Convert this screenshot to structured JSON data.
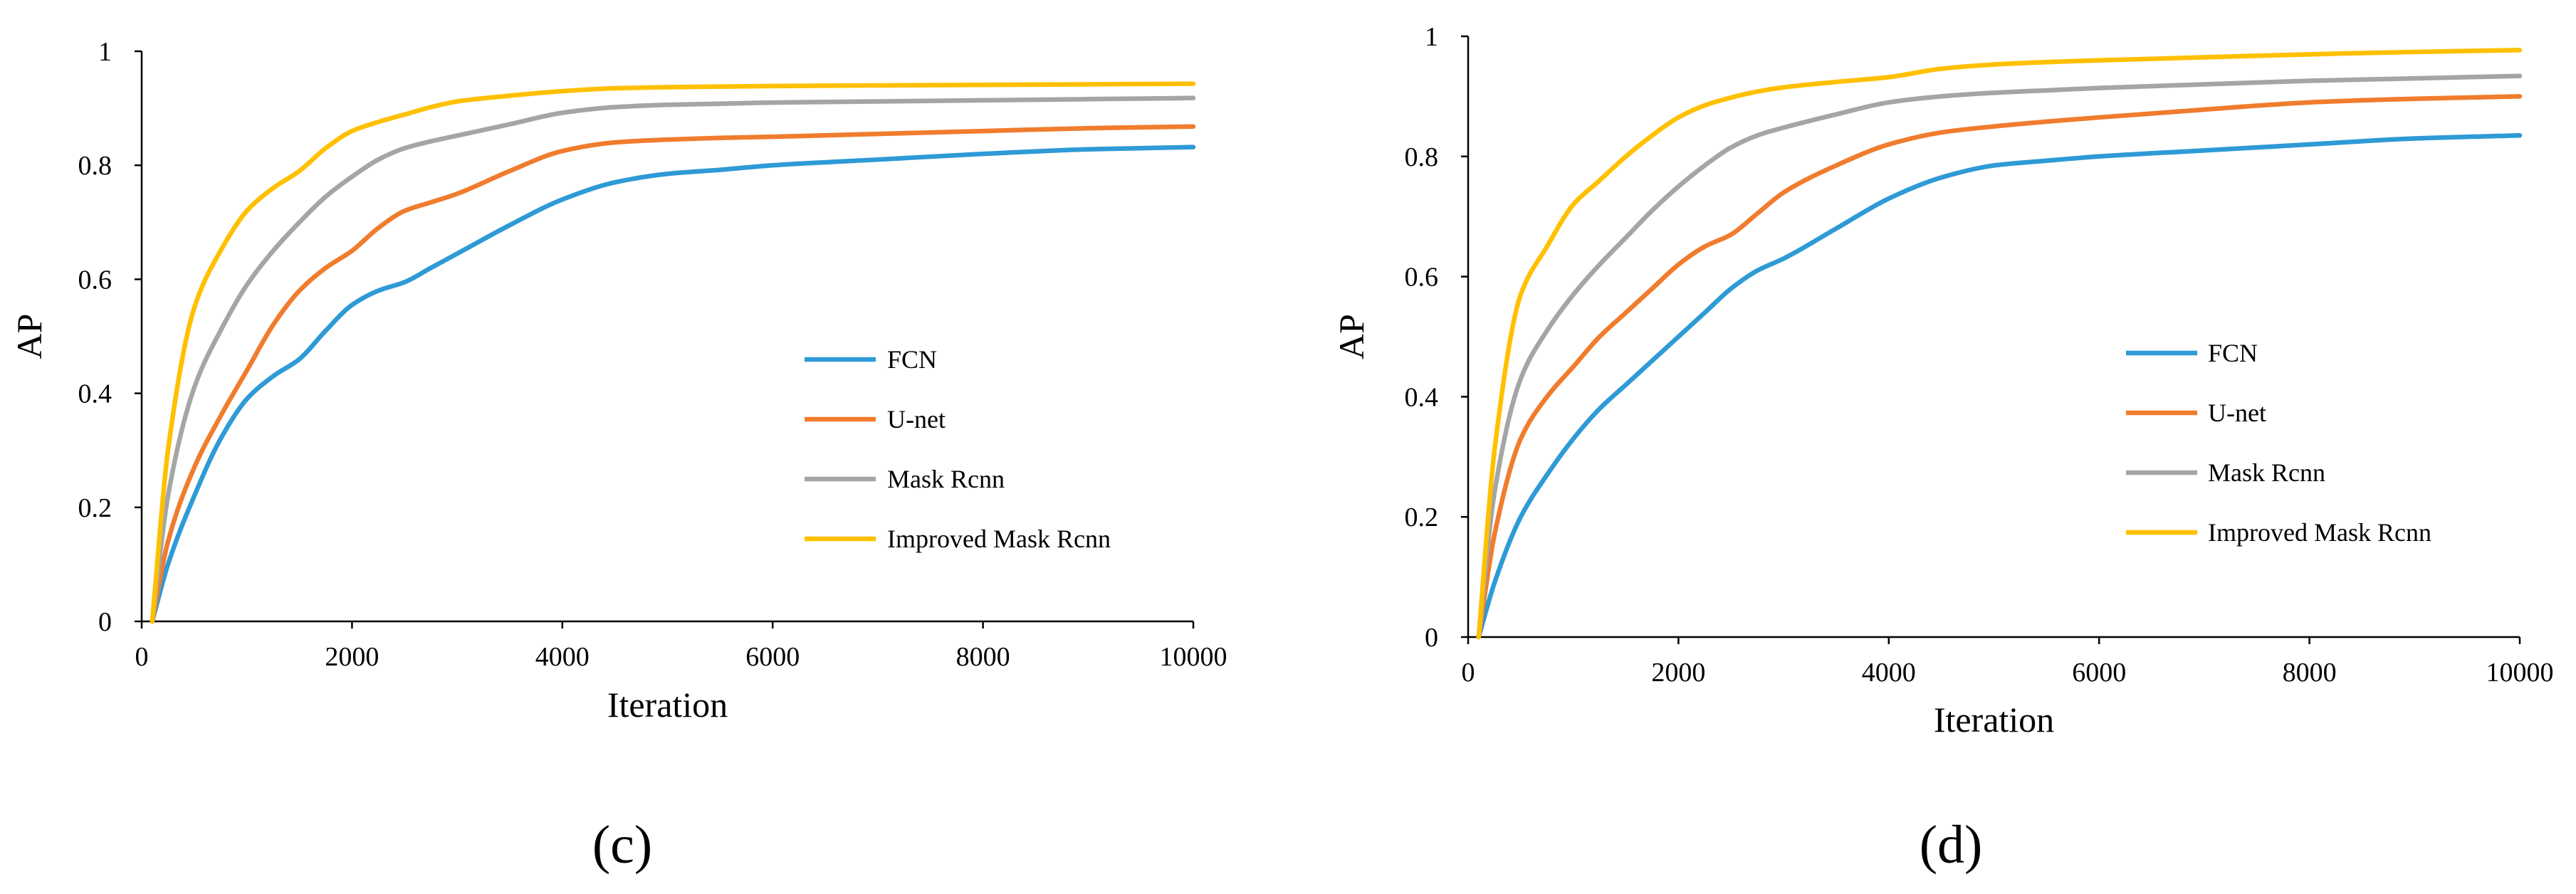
{
  "chart_data": [
    {
      "type": "line",
      "panel_id": "c",
      "caption": "(c)",
      "title": "",
      "xlabel": "Iteration",
      "ylabel": "AP",
      "xlim": [
        0,
        10000
      ],
      "ylim": [
        0,
        1
      ],
      "xticks": [
        0,
        2000,
        4000,
        6000,
        8000,
        10000
      ],
      "yticks": [
        0,
        0.2,
        0.4,
        0.6,
        0.8,
        1
      ],
      "ytick_labels": [
        "0",
        "0.2",
        "0.4",
        "0.6",
        "0.8",
        "1"
      ],
      "grid": false,
      "legend_position": "center-right",
      "series": [
        {
          "name": "FCN",
          "color": "#2E9AD6",
          "x": [
            100,
            250,
            500,
            750,
            1000,
            1250,
            1500,
            1750,
            2000,
            2250,
            2500,
            2750,
            3000,
            3500,
            4000,
            4500,
            5000,
            5500,
            6000,
            7000,
            8000,
            9000,
            10000
          ],
          "y": [
            0,
            0.1,
            0.22,
            0.32,
            0.39,
            0.43,
            0.46,
            0.51,
            0.555,
            0.58,
            0.595,
            0.62,
            0.645,
            0.695,
            0.74,
            0.77,
            0.785,
            0.792,
            0.8,
            0.81,
            0.82,
            0.828,
            0.832
          ]
        },
        {
          "name": "U-net",
          "color": "#F07C2D",
          "x": [
            100,
            250,
            500,
            750,
            1000,
            1250,
            1500,
            1750,
            2000,
            2250,
            2500,
            2750,
            3000,
            3500,
            4000,
            4500,
            5000,
            5500,
            6000,
            7000,
            8000,
            9000,
            10000
          ],
          "y": [
            0,
            0.14,
            0.27,
            0.36,
            0.44,
            0.52,
            0.58,
            0.62,
            0.65,
            0.69,
            0.72,
            0.735,
            0.75,
            0.79,
            0.825,
            0.84,
            0.845,
            0.848,
            0.85,
            0.855,
            0.86,
            0.865,
            0.868
          ]
        },
        {
          "name": "Mask Rcnn",
          "color": "#A5A5A5",
          "x": [
            100,
            250,
            500,
            750,
            1000,
            1250,
            1500,
            1750,
            2000,
            2250,
            2500,
            2750,
            3000,
            3500,
            4000,
            4500,
            5000,
            5500,
            6000,
            7000,
            8000,
            9000,
            10000
          ],
          "y": [
            0,
            0.22,
            0.41,
            0.51,
            0.59,
            0.65,
            0.7,
            0.745,
            0.78,
            0.81,
            0.83,
            0.842,
            0.852,
            0.872,
            0.892,
            0.902,
            0.906,
            0.908,
            0.91,
            0.912,
            0.914,
            0.916,
            0.918
          ]
        },
        {
          "name": "Improved Mask Rcnn",
          "color": "#FFC000",
          "x": [
            100,
            250,
            500,
            750,
            1000,
            1250,
            1500,
            1750,
            2000,
            2250,
            2500,
            2750,
            3000,
            3500,
            4000,
            4500,
            5000,
            5500,
            6000,
            7000,
            8000,
            9000,
            10000
          ],
          "y": [
            0,
            0.3,
            0.55,
            0.65,
            0.72,
            0.76,
            0.79,
            0.83,
            0.86,
            0.876,
            0.889,
            0.902,
            0.912,
            0.922,
            0.93,
            0.935,
            0.937,
            0.938,
            0.939,
            0.94,
            0.941,
            0.942,
            0.943
          ]
        }
      ]
    },
    {
      "type": "line",
      "panel_id": "d",
      "caption": "(d)",
      "title": "",
      "xlabel": "Iteration",
      "ylabel": "AP",
      "xlim": [
        0,
        10000
      ],
      "ylim": [
        0,
        1
      ],
      "xticks": [
        0,
        2000,
        4000,
        6000,
        8000,
        10000
      ],
      "yticks": [
        0,
        0.2,
        0.4,
        0.6,
        0.8,
        1
      ],
      "ytick_labels": [
        "0",
        "0.2",
        "0.4",
        "0.6",
        "0.8",
        "1"
      ],
      "grid": false,
      "legend_position": "center-right",
      "series": [
        {
          "name": "FCN",
          "color": "#2E9AD6",
          "x": [
            100,
            250,
            500,
            750,
            1000,
            1250,
            1500,
            1750,
            2000,
            2250,
            2500,
            2750,
            3000,
            3500,
            4000,
            4500,
            5000,
            5500,
            6000,
            7000,
            8000,
            9000,
            10000
          ],
          "y": [
            0,
            0.09,
            0.2,
            0.27,
            0.33,
            0.38,
            0.42,
            0.46,
            0.5,
            0.54,
            0.58,
            0.61,
            0.63,
            0.68,
            0.73,
            0.765,
            0.785,
            0.793,
            0.8,
            0.81,
            0.82,
            0.83,
            0.835
          ]
        },
        {
          "name": "U-net",
          "color": "#F07C2D",
          "x": [
            100,
            250,
            500,
            750,
            1000,
            1250,
            1500,
            1750,
            2000,
            2250,
            2500,
            2750,
            3000,
            3500,
            4000,
            4500,
            5000,
            5500,
            6000,
            7000,
            8000,
            9000,
            10000
          ],
          "y": [
            0,
            0.17,
            0.33,
            0.4,
            0.45,
            0.5,
            0.54,
            0.58,
            0.62,
            0.65,
            0.67,
            0.705,
            0.74,
            0.785,
            0.82,
            0.84,
            0.85,
            0.858,
            0.865,
            0.878,
            0.89,
            0.896,
            0.9
          ]
        },
        {
          "name": "Mask Rcnn",
          "color": "#A5A5A5",
          "x": [
            100,
            250,
            500,
            750,
            1000,
            1250,
            1500,
            1750,
            2000,
            2250,
            2500,
            2750,
            3000,
            3500,
            4000,
            4500,
            5000,
            5500,
            6000,
            7000,
            8000,
            9000,
            10000
          ],
          "y": [
            0,
            0.24,
            0.43,
            0.51,
            0.57,
            0.62,
            0.665,
            0.71,
            0.75,
            0.785,
            0.815,
            0.835,
            0.848,
            0.87,
            0.89,
            0.9,
            0.906,
            0.91,
            0.914,
            0.92,
            0.926,
            0.93,
            0.934
          ]
        },
        {
          "name": "Improved Mask Rcnn",
          "color": "#FFC000",
          "x": [
            100,
            250,
            500,
            750,
            1000,
            1250,
            1500,
            1750,
            2000,
            2250,
            2500,
            2750,
            3000,
            3500,
            4000,
            4500,
            5000,
            5500,
            6000,
            7000,
            8000,
            9000,
            10000
          ],
          "y": [
            0,
            0.31,
            0.57,
            0.65,
            0.72,
            0.76,
            0.8,
            0.835,
            0.865,
            0.885,
            0.898,
            0.908,
            0.915,
            0.924,
            0.932,
            0.946,
            0.953,
            0.957,
            0.96,
            0.965,
            0.97,
            0.974,
            0.977
          ]
        }
      ]
    }
  ]
}
